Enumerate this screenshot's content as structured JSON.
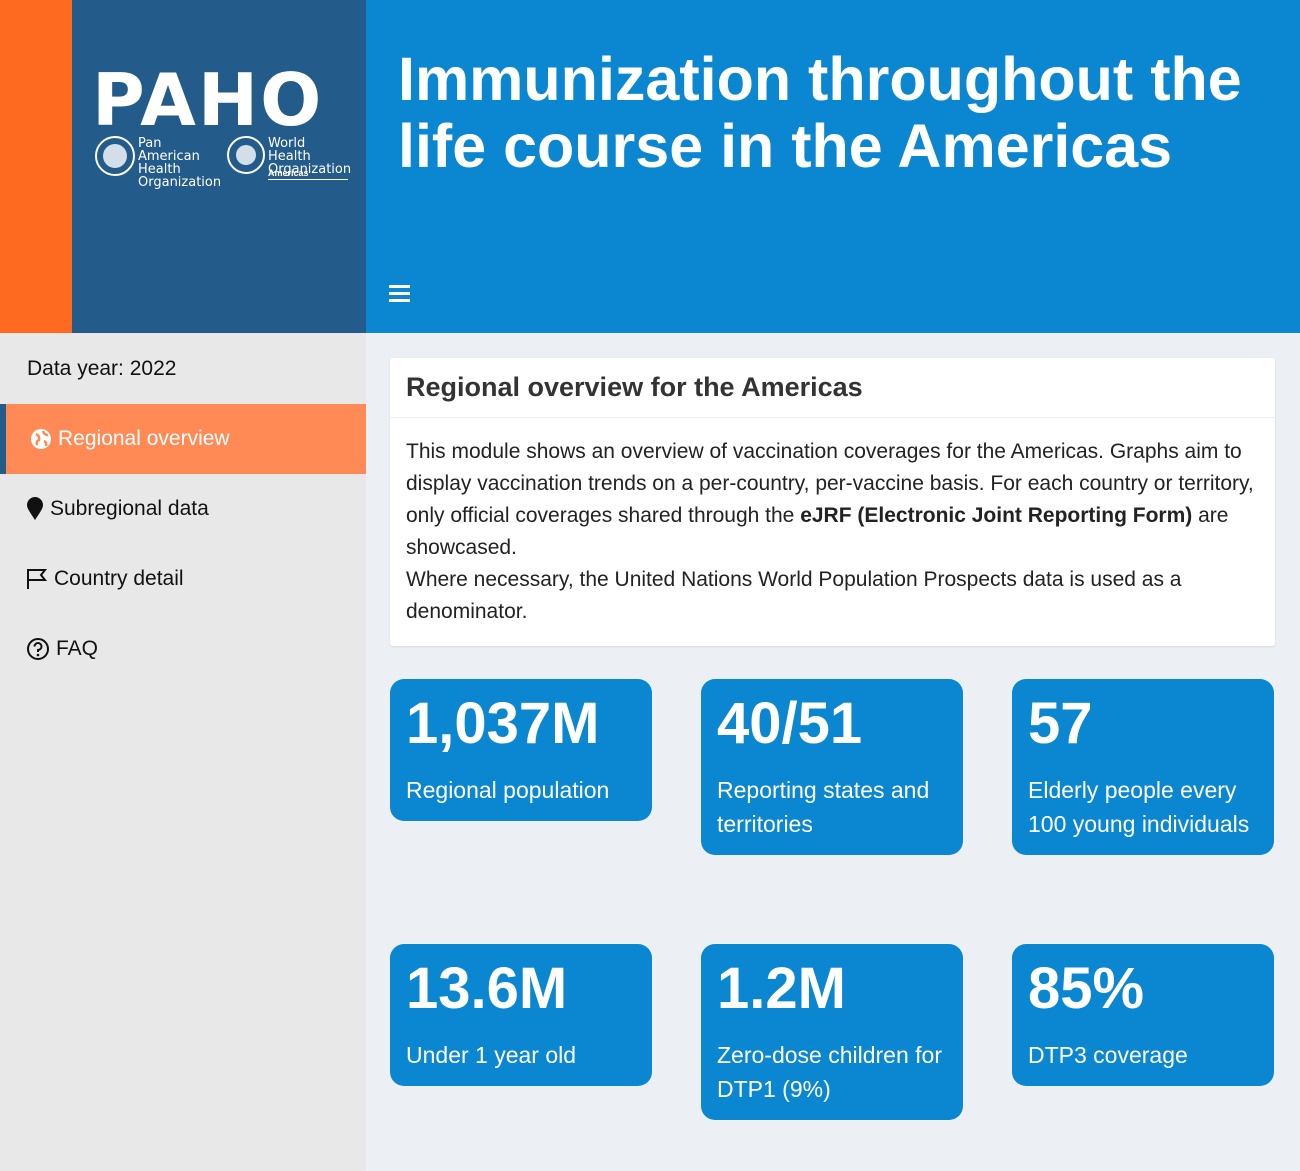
{
  "logo": {
    "acronym": "PAHO",
    "paho_name": "Pan American Health Organization",
    "who_name": "World Health Organization",
    "region": "Americas"
  },
  "header": {
    "title": "Immunization throughout the life course in the Americas"
  },
  "sidebar": {
    "data_year": "Data year: 2022",
    "nav": [
      "Regional overview",
      "Subregional data",
      "Country detail",
      "FAQ"
    ]
  },
  "card": {
    "title": "Regional overview for the Americas",
    "text_before": "This module shows an overview of vaccination coverages for the Americas. Graphs aim to display vaccination trends on a per-country, per-vaccine basis. For each country or territory, only official coverages shared through the ",
    "bold": "eJRF (Electronic Joint Reporting Form)",
    "text_after": " are showcased.",
    "second_paragraph": "Where necessary, the United Nations World Population Prospects data is used as a denominator."
  },
  "value_boxes": [
    {
      "value": "1,037M",
      "label": "Regional population"
    },
    {
      "value": "40/51",
      "label": "Reporting states and territories"
    },
    {
      "value": "57",
      "label": "Elderly people every 100 young individuals"
    },
    {
      "value": "13.6M",
      "label": "Under 1 year old"
    },
    {
      "value": "1.2M",
      "label": "Zero-dose children for DTP1 (9%)"
    },
    {
      "value": "85%",
      "label": "DTP3 coverage"
    }
  ]
}
